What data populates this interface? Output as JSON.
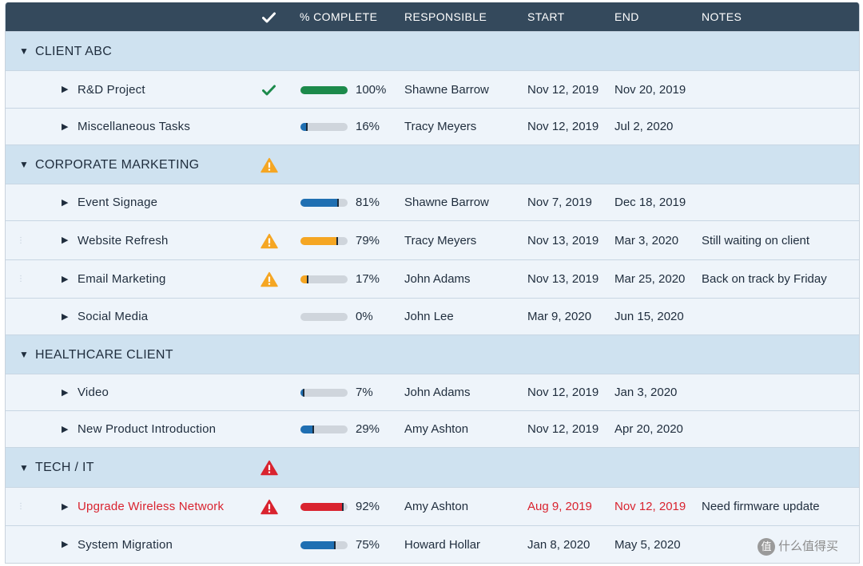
{
  "header": {
    "check_icon": "checkmark-icon",
    "percent_complete": "% COMPLETE",
    "responsible": "RESPONSIBLE",
    "start": "START",
    "end": "END",
    "notes": "NOTES"
  },
  "colors": {
    "header_bg": "#34495c",
    "group_bg": "#cfe2f0",
    "row_bg": "#eef4fa",
    "progress_blue": "#1f6fb2",
    "progress_green": "#1c8a4b",
    "progress_orange": "#f5a623",
    "progress_red": "#d9232f",
    "progress_track": "#cfd5dc",
    "alert_red": "#d9232f"
  },
  "groups": [
    {
      "name": "CLIENT ABC",
      "status_icon": "",
      "tasks": [
        {
          "name": "R&D Project",
          "status_icon": "checkmark-icon",
          "progress": 100,
          "progress_color": "green",
          "percent": "100%",
          "responsible": "Shawne Barrow",
          "start": "Nov 12, 2019",
          "end": "Nov 20, 2019",
          "notes": "",
          "overdue": false
        },
        {
          "name": "Miscellaneous Tasks",
          "status_icon": "",
          "progress": 16,
          "progress_color": "blue",
          "percent": "16%",
          "responsible": "Tracy Meyers",
          "start": "Nov 12, 2019",
          "end": "Jul 2, 2020",
          "notes": "",
          "overdue": false
        }
      ]
    },
    {
      "name": "CORPORATE MARKETING",
      "status_icon": "warning-orange-icon",
      "tasks": [
        {
          "name": "Event Signage",
          "status_icon": "",
          "progress": 81,
          "progress_color": "blue",
          "percent": "81%",
          "responsible": "Shawne Barrow",
          "start": "Nov 7, 2019",
          "end": "Dec 18, 2019",
          "notes": "",
          "overdue": false
        },
        {
          "name": "Website Refresh",
          "status_icon": "warning-orange-icon",
          "progress": 79,
          "progress_color": "orange",
          "percent": "79%",
          "responsible": "Tracy Meyers",
          "start": "Nov 13, 2019",
          "end": "Mar 3, 2020",
          "notes": "Still waiting on client",
          "overdue": false
        },
        {
          "name": "Email Marketing",
          "status_icon": "warning-orange-icon",
          "progress": 17,
          "progress_color": "orange",
          "percent": "17%",
          "responsible": "John Adams",
          "start": "Nov 13, 2019",
          "end": "Mar 25, 2020",
          "notes": "Back on track by Friday",
          "overdue": false
        },
        {
          "name": "Social Media",
          "status_icon": "",
          "progress": 0,
          "progress_color": "blue",
          "percent": "0%",
          "responsible": "John Lee",
          "start": "Mar 9, 2020",
          "end": "Jun 15, 2020",
          "notes": "",
          "overdue": false
        }
      ]
    },
    {
      "name": "HEALTHCARE CLIENT",
      "status_icon": "",
      "tasks": [
        {
          "name": "Video",
          "status_icon": "",
          "progress": 7,
          "progress_color": "blue",
          "percent": "7%",
          "responsible": "John Adams",
          "start": "Nov 12, 2019",
          "end": "Jan 3, 2020",
          "notes": "",
          "overdue": false
        },
        {
          "name": "New Product Introduction",
          "status_icon": "",
          "progress": 29,
          "progress_color": "blue",
          "percent": "29%",
          "responsible": "Amy Ashton",
          "start": "Nov 12, 2019",
          "end": "Apr 20, 2020",
          "notes": "",
          "overdue": false
        }
      ]
    },
    {
      "name": "TECH / IT",
      "status_icon": "warning-red-icon",
      "tasks": [
        {
          "name": "Upgrade Wireless Network",
          "status_icon": "warning-red-icon",
          "progress": 92,
          "progress_color": "red",
          "percent": "92%",
          "responsible": "Amy Ashton",
          "start": "Aug 9, 2019",
          "end": "Nov 12, 2019",
          "notes": "Need firmware update",
          "overdue": true
        },
        {
          "name": "System Migration",
          "status_icon": "",
          "progress": 75,
          "progress_color": "blue",
          "percent": "75%",
          "responsible": "Howard Hollar",
          "start": "Jan 8, 2020",
          "end": "May 5, 2020",
          "notes": "",
          "overdue": false
        }
      ]
    }
  ],
  "watermark": {
    "badge": "值",
    "text": "什么值得买"
  }
}
